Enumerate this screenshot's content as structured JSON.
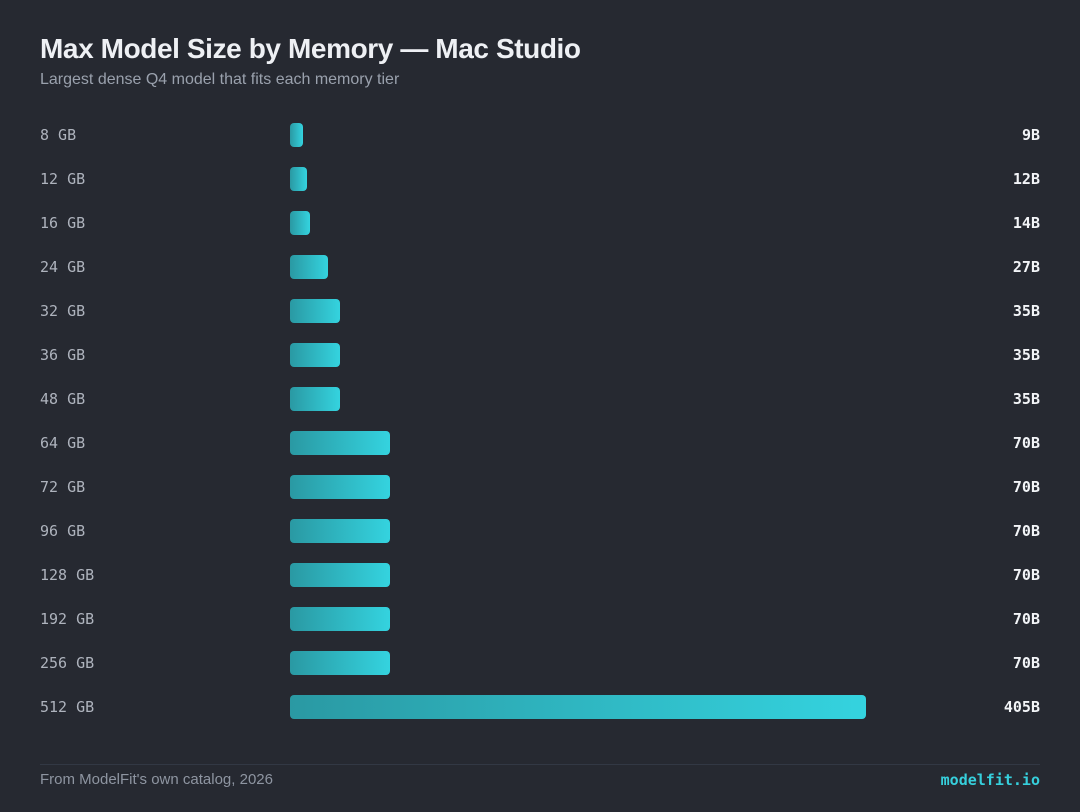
{
  "chart_data": {
    "type": "bar",
    "orientation": "horizontal",
    "title": "Max Model Size by Memory — Mac Studio",
    "subtitle": "Largest dense Q4 model that fits each memory tier",
    "categories": [
      "8 GB",
      "12 GB",
      "16 GB",
      "24 GB",
      "32 GB",
      "36 GB",
      "48 GB",
      "64 GB",
      "72 GB",
      "96 GB",
      "128 GB",
      "192 GB",
      "256 GB",
      "512 GB"
    ],
    "values": [
      9,
      12,
      14,
      27,
      35,
      35,
      35,
      70,
      70,
      70,
      70,
      70,
      70,
      405
    ],
    "value_labels": [
      "9B",
      "12B",
      "14B",
      "27B",
      "35B",
      "35B",
      "35B",
      "70B",
      "70B",
      "70B",
      "70B",
      "70B",
      "70B",
      "405B"
    ],
    "xlim": [
      0,
      405
    ],
    "grid": false,
    "bar_gradient": [
      "#2a99a3",
      "#34d3df"
    ]
  },
  "footer": {
    "source": "From ModelFit's own catalog, 2026",
    "brand": "modelfit.io"
  },
  "colors": {
    "background": "#262931",
    "accent": "#36cfdc"
  }
}
